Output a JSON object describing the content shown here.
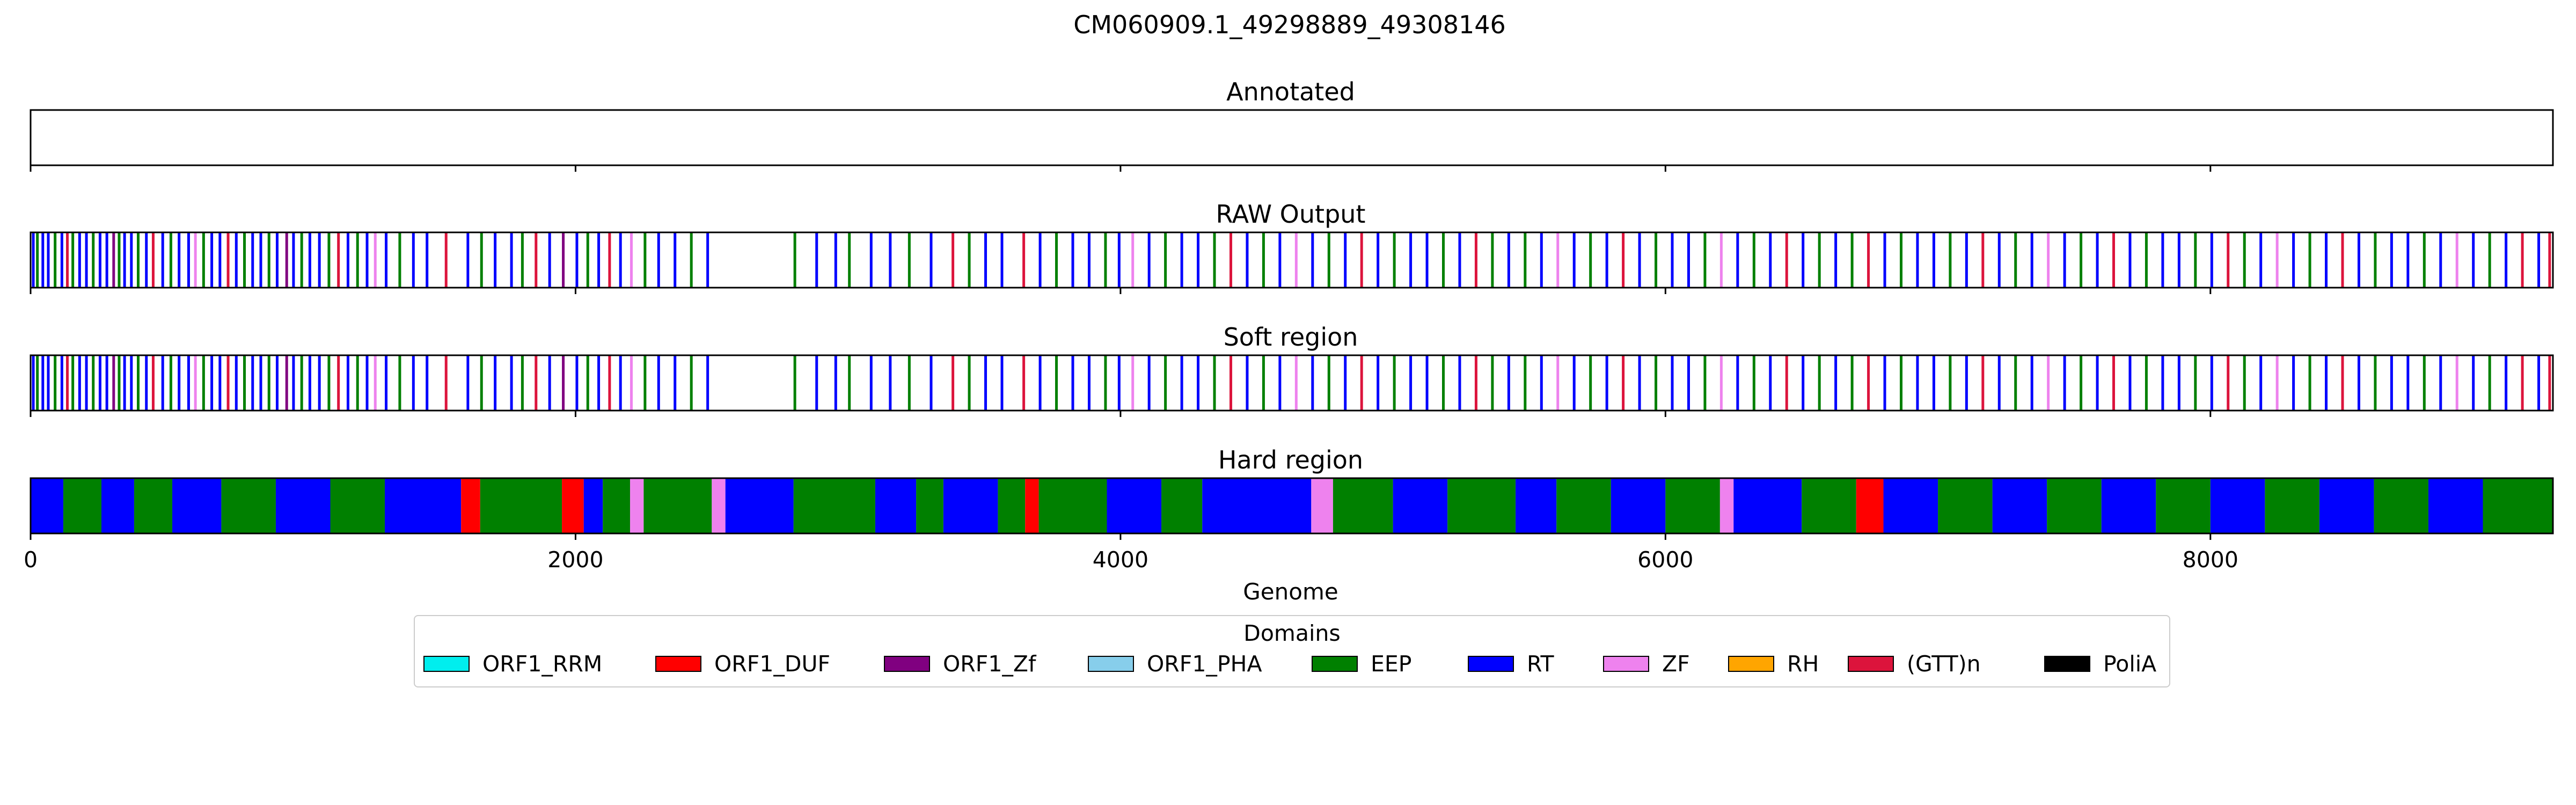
{
  "chart_data": {
    "type": "heatmap",
    "title": "CM060909.1_49298889_49308146",
    "xlabel": "Genome",
    "xlim": [
      0,
      9257
    ],
    "x_ticks": [
      0,
      2000,
      4000,
      6000,
      8000
    ],
    "legend": {
      "title": "Domains",
      "placement": "bottom-center",
      "entries": [
        {
          "name": "ORF1_RRM",
          "color": "#00eeee"
        },
        {
          "name": "ORF1_DUF",
          "color": "#ff0000"
        },
        {
          "name": "ORF1_Zf",
          "color": "#800080"
        },
        {
          "name": "ORF1_PHA",
          "color": "#87ceeb"
        },
        {
          "name": "EEP",
          "color": "#008000"
        },
        {
          "name": "RT",
          "color": "#0000ff"
        },
        {
          "name": "ZF",
          "color": "#ee82ee"
        },
        {
          "name": "RH",
          "color": "#ffa500"
        },
        {
          "name": "(GTT)n",
          "color": "#dc143c"
        },
        {
          "name": "PoliA",
          "color": "#000000"
        }
      ]
    },
    "panels": [
      {
        "title": "Annotated",
        "segments": []
      },
      {
        "title": "RAW Output",
        "segments": [
          [
            5,
            "RT"
          ],
          [
            20,
            "EEP"
          ],
          [
            40,
            "RT"
          ],
          [
            60,
            "RT"
          ],
          [
            85,
            "EEP"
          ],
          [
            110,
            "RT"
          ],
          [
            130,
            "(GTT)n"
          ],
          [
            150,
            "EEP"
          ],
          [
            175,
            "RT"
          ],
          [
            200,
            "RT"
          ],
          [
            225,
            "EEP"
          ],
          [
            250,
            "RT"
          ],
          [
            275,
            "RT"
          ],
          [
            300,
            "ORF1_Zf"
          ],
          [
            320,
            "EEP"
          ],
          [
            340,
            "RT"
          ],
          [
            365,
            "RT"
          ],
          [
            390,
            "EEP"
          ],
          [
            420,
            "RT"
          ],
          [
            445,
            "(GTT)n"
          ],
          [
            480,
            "RT"
          ],
          [
            510,
            "EEP"
          ],
          [
            540,
            "RT"
          ],
          [
            575,
            "RT"
          ],
          [
            600,
            "ZF"
          ],
          [
            630,
            "EEP"
          ],
          [
            660,
            "RT"
          ],
          [
            690,
            "RT"
          ],
          [
            720,
            "(GTT)n"
          ],
          [
            750,
            "RT"
          ],
          [
            780,
            "EEP"
          ],
          [
            810,
            "RT"
          ],
          [
            840,
            "RT"
          ],
          [
            870,
            "EEP"
          ],
          [
            900,
            "RT"
          ],
          [
            935,
            "ORF1_Zf"
          ],
          [
            960,
            "RT"
          ],
          [
            990,
            "EEP"
          ],
          [
            1020,
            "RT"
          ],
          [
            1055,
            "RT"
          ],
          [
            1090,
            "EEP"
          ],
          [
            1125,
            "(GTT)n"
          ],
          [
            1160,
            "RT"
          ],
          [
            1195,
            "EEP"
          ],
          [
            1230,
            "RT"
          ],
          [
            1260,
            "ZF"
          ],
          [
            1300,
            "RT"
          ],
          [
            1350,
            "EEP"
          ],
          [
            1400,
            "RT"
          ],
          [
            1450,
            "RT"
          ],
          [
            1520,
            "(GTT)n"
          ],
          [
            1600,
            "RT"
          ],
          [
            1650,
            "EEP"
          ],
          [
            1700,
            "RT"
          ],
          [
            1760,
            "RT"
          ],
          [
            1800,
            "EEP"
          ],
          [
            1850,
            "(GTT)n"
          ],
          [
            1900,
            "RT"
          ],
          [
            1950,
            "ORF1_Zf"
          ],
          [
            2000,
            "RT"
          ],
          [
            2040,
            "EEP"
          ],
          [
            2080,
            "RT"
          ],
          [
            2120,
            "(GTT)n"
          ],
          [
            2160,
            "RT"
          ],
          [
            2200,
            "ZF"
          ],
          [
            2250,
            "EEP"
          ],
          [
            2300,
            "RT"
          ],
          [
            2360,
            "RT"
          ],
          [
            2420,
            "EEP"
          ],
          [
            2480,
            "RT"
          ],
          [
            2800,
            "EEP"
          ],
          [
            2880,
            "RT"
          ],
          [
            2950,
            "RT"
          ],
          [
            3000,
            "EEP"
          ],
          [
            3080,
            "RT"
          ],
          [
            3150,
            "RT"
          ],
          [
            3220,
            "EEP"
          ],
          [
            3300,
            "RT"
          ],
          [
            3380,
            "(GTT)n"
          ],
          [
            3440,
            "EEP"
          ],
          [
            3500,
            "RT"
          ],
          [
            3560,
            "RT"
          ],
          [
            3640,
            "(GTT)n"
          ],
          [
            3700,
            "RT"
          ],
          [
            3760,
            "EEP"
          ],
          [
            3820,
            "RT"
          ],
          [
            3880,
            "RT"
          ],
          [
            3940,
            "EEP"
          ],
          [
            3990,
            "RT"
          ],
          [
            4040,
            "ZF"
          ],
          [
            4100,
            "RT"
          ],
          [
            4160,
            "EEP"
          ],
          [
            4220,
            "RT"
          ],
          [
            4280,
            "RT"
          ],
          [
            4340,
            "EEP"
          ],
          [
            4400,
            "(GTT)n"
          ],
          [
            4460,
            "RT"
          ],
          [
            4520,
            "EEP"
          ],
          [
            4580,
            "RT"
          ],
          [
            4640,
            "ZF"
          ],
          [
            4700,
            "RT"
          ],
          [
            4760,
            "EEP"
          ],
          [
            4820,
            "RT"
          ],
          [
            4880,
            "(GTT)n"
          ],
          [
            4940,
            "RT"
          ],
          [
            5000,
            "EEP"
          ],
          [
            5060,
            "RT"
          ],
          [
            5120,
            "RT"
          ],
          [
            5180,
            "EEP"
          ],
          [
            5240,
            "RT"
          ],
          [
            5300,
            "(GTT)n"
          ],
          [
            5360,
            "EEP"
          ],
          [
            5420,
            "RT"
          ],
          [
            5480,
            "EEP"
          ],
          [
            5540,
            "RT"
          ],
          [
            5600,
            "ZF"
          ],
          [
            5660,
            "RT"
          ],
          [
            5720,
            "EEP"
          ],
          [
            5780,
            "RT"
          ],
          [
            5840,
            "(GTT)n"
          ],
          [
            5900,
            "RT"
          ],
          [
            5960,
            "EEP"
          ],
          [
            6020,
            "RT"
          ],
          [
            6080,
            "RT"
          ],
          [
            6140,
            "EEP"
          ],
          [
            6200,
            "ZF"
          ],
          [
            6260,
            "RT"
          ],
          [
            6320,
            "EEP"
          ],
          [
            6380,
            "RT"
          ],
          [
            6440,
            "(GTT)n"
          ],
          [
            6500,
            "RT"
          ],
          [
            6560,
            "EEP"
          ],
          [
            6620,
            "RT"
          ],
          [
            6680,
            "EEP"
          ],
          [
            6740,
            "(GTT)n"
          ],
          [
            6800,
            "RT"
          ],
          [
            6860,
            "EEP"
          ],
          [
            6920,
            "RT"
          ],
          [
            6980,
            "RT"
          ],
          [
            7040,
            "EEP"
          ],
          [
            7100,
            "RT"
          ],
          [
            7160,
            "(GTT)n"
          ],
          [
            7220,
            "RT"
          ],
          [
            7280,
            "EEP"
          ],
          [
            7340,
            "RT"
          ],
          [
            7400,
            "ZF"
          ],
          [
            7460,
            "RT"
          ],
          [
            7520,
            "EEP"
          ],
          [
            7580,
            "RT"
          ],
          [
            7640,
            "(GTT)n"
          ],
          [
            7700,
            "RT"
          ],
          [
            7760,
            "EEP"
          ],
          [
            7820,
            "RT"
          ],
          [
            7880,
            "RT"
          ],
          [
            7940,
            "EEP"
          ],
          [
            8000,
            "RT"
          ],
          [
            8060,
            "(GTT)n"
          ],
          [
            8120,
            "EEP"
          ],
          [
            8180,
            "RT"
          ],
          [
            8240,
            "ZF"
          ],
          [
            8300,
            "RT"
          ],
          [
            8360,
            "EEP"
          ],
          [
            8420,
            "RT"
          ],
          [
            8480,
            "(GTT)n"
          ],
          [
            8540,
            "RT"
          ],
          [
            8600,
            "EEP"
          ],
          [
            8660,
            "RT"
          ],
          [
            8720,
            "RT"
          ],
          [
            8780,
            "EEP"
          ],
          [
            8840,
            "RT"
          ],
          [
            8900,
            "ZF"
          ],
          [
            8960,
            "RT"
          ],
          [
            9020,
            "EEP"
          ],
          [
            9080,
            "RT"
          ],
          [
            9140,
            "(GTT)n"
          ],
          [
            9200,
            "RT"
          ],
          [
            9240,
            "(GTT)n"
          ]
        ]
      },
      {
        "title": "Soft region",
        "segments": "same-as-RAW Output"
      },
      {
        "title": "Hard region",
        "segments": [
          [
            0,
            120,
            "RT"
          ],
          [
            120,
            260,
            "EEP"
          ],
          [
            260,
            380,
            "RT"
          ],
          [
            380,
            520,
            "EEP"
          ],
          [
            520,
            700,
            "RT"
          ],
          [
            700,
            900,
            "EEP"
          ],
          [
            900,
            1100,
            "RT"
          ],
          [
            1100,
            1300,
            "EEP"
          ],
          [
            1300,
            1580,
            "RT"
          ],
          [
            1580,
            1650,
            "ORF1_DUF"
          ],
          [
            1650,
            1950,
            "EEP"
          ],
          [
            1950,
            2030,
            "ORF1_DUF"
          ],
          [
            2030,
            2100,
            "RT"
          ],
          [
            2100,
            2200,
            "EEP"
          ],
          [
            2200,
            2250,
            "ZF"
          ],
          [
            2250,
            2500,
            "EEP"
          ],
          [
            2500,
            2550,
            "ZF"
          ],
          [
            2550,
            2800,
            "RT"
          ],
          [
            2800,
            3100,
            "EEP"
          ],
          [
            3100,
            3250,
            "RT"
          ],
          [
            3250,
            3350,
            "EEP"
          ],
          [
            3350,
            3550,
            "RT"
          ],
          [
            3550,
            3650,
            "EEP"
          ],
          [
            3650,
            3700,
            "ORF1_DUF"
          ],
          [
            3700,
            3950,
            "EEP"
          ],
          [
            3950,
            4150,
            "RT"
          ],
          [
            4150,
            4300,
            "EEP"
          ],
          [
            4300,
            4700,
            "RT"
          ],
          [
            4700,
            4780,
            "ZF"
          ],
          [
            4780,
            5000,
            "EEP"
          ],
          [
            5000,
            5200,
            "RT"
          ],
          [
            5200,
            5450,
            "EEP"
          ],
          [
            5450,
            5600,
            "RT"
          ],
          [
            5600,
            5800,
            "EEP"
          ],
          [
            5800,
            6000,
            "RT"
          ],
          [
            6000,
            6200,
            "EEP"
          ],
          [
            6200,
            6250,
            "ZF"
          ],
          [
            6250,
            6500,
            "RT"
          ],
          [
            6500,
            6700,
            "EEP"
          ],
          [
            6700,
            6800,
            "ORF1_DUF"
          ],
          [
            6800,
            7000,
            "RT"
          ],
          [
            7000,
            7200,
            "EEP"
          ],
          [
            7200,
            7400,
            "RT"
          ],
          [
            7400,
            7600,
            "EEP"
          ],
          [
            7600,
            7800,
            "RT"
          ],
          [
            7800,
            8000,
            "EEP"
          ],
          [
            8000,
            8200,
            "RT"
          ],
          [
            8200,
            8400,
            "EEP"
          ],
          [
            8400,
            8600,
            "RT"
          ],
          [
            8600,
            8800,
            "EEP"
          ],
          [
            8800,
            9000,
            "RT"
          ],
          [
            9000,
            9257,
            "EEP"
          ]
        ]
      }
    ]
  }
}
